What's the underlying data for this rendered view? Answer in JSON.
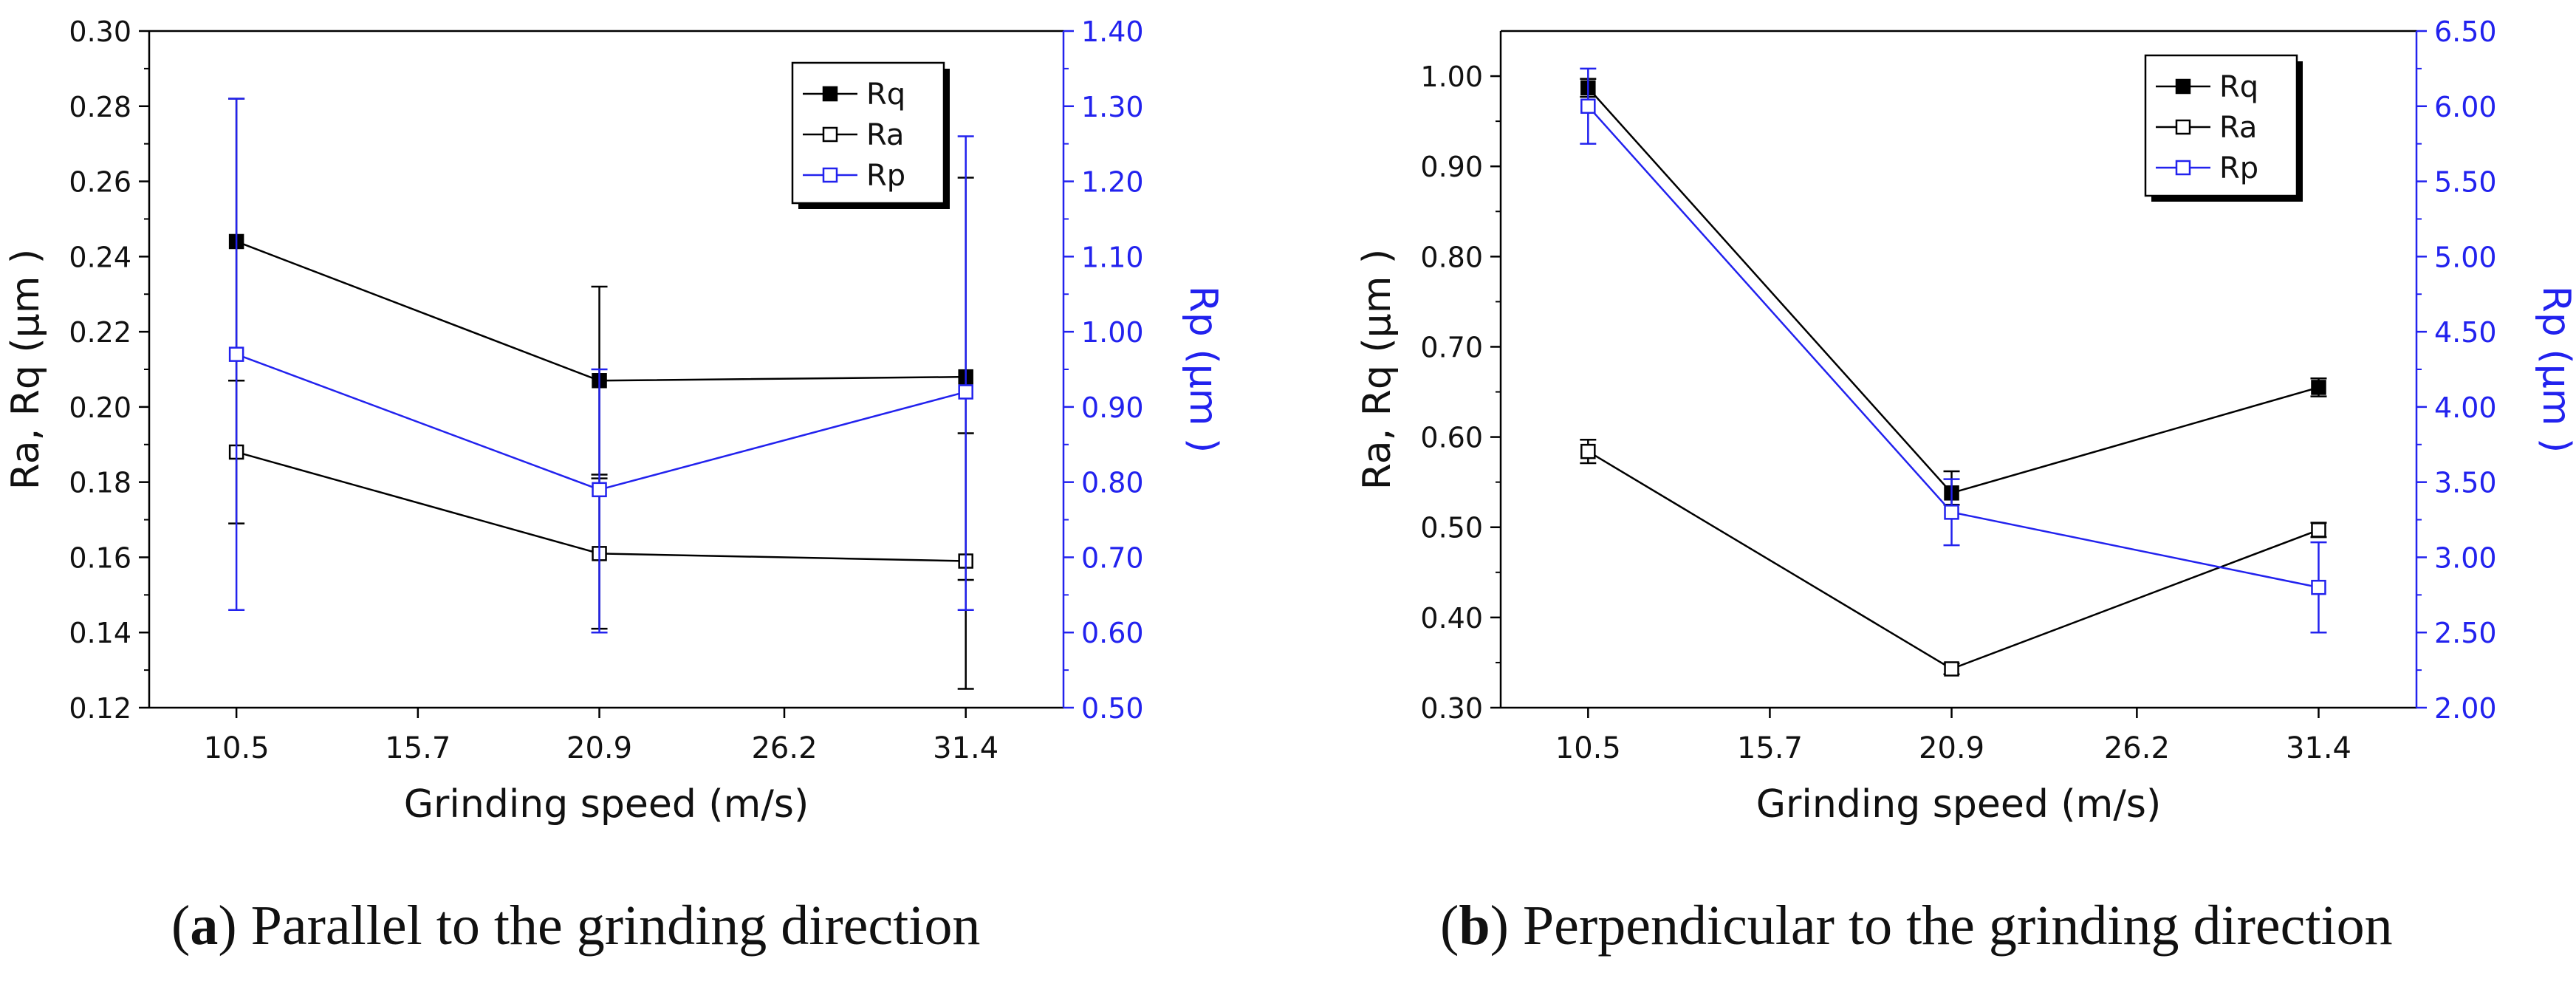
{
  "charts": [
    {
      "panel": "a",
      "caption_letter": "a",
      "caption_text": "Parallel to the grinding direction"
    },
    {
      "panel": "b",
      "caption_letter": "b",
      "caption_text": "Perpendicular to the grinding direction"
    }
  ],
  "chart_data": [
    {
      "type": "line",
      "title": "",
      "xlabel": "Grinding speed (m/s)",
      "ylabel": "Ra, Rq (µm )",
      "y2label": "Rp (µm )",
      "x_ticks": [
        "10.5",
        "15.7",
        "20.9",
        "26.2",
        "31.4"
      ],
      "xlim": [
        8.0,
        34.2
      ],
      "ylim": [
        0.12,
        0.3
      ],
      "y_ticks": [
        "0.12",
        "0.14",
        "0.16",
        "0.18",
        "0.20",
        "0.22",
        "0.24",
        "0.26",
        "0.28",
        "0.30"
      ],
      "y2lim": [
        0.5,
        1.4
      ],
      "y2_ticks": [
        "0.50",
        "0.60",
        "0.70",
        "0.80",
        "0.90",
        "1.00",
        "1.10",
        "1.20",
        "1.30",
        "1.40"
      ],
      "legend_position": "top-right",
      "x": [
        10.5,
        20.9,
        31.4
      ],
      "series": [
        {
          "name": "Rq",
          "axis": "left",
          "marker": "filled-square",
          "color": "#000000",
          "values": [
            0.244,
            0.207,
            0.208
          ],
          "err_low": [
            0.207,
            0.182,
            0.154
          ],
          "err_high": [
            0.282,
            0.232,
            0.261
          ]
        },
        {
          "name": "Ra",
          "axis": "left",
          "marker": "open-square",
          "color": "#000000",
          "values": [
            0.188,
            0.161,
            0.159
          ],
          "err_low": [
            0.169,
            0.141,
            0.125
          ],
          "err_high": [
            0.207,
            0.181,
            0.193
          ]
        },
        {
          "name": "Rp",
          "axis": "right",
          "marker": "open-square",
          "color": "#2222ee",
          "values": [
            0.97,
            0.79,
            0.92
          ],
          "err_low": [
            0.63,
            0.6,
            0.63
          ],
          "err_high": [
            1.31,
            0.95,
            1.26
          ]
        }
      ]
    },
    {
      "type": "line",
      "title": "",
      "xlabel": "Grinding speed (m/s)",
      "ylabel": "Ra, Rq (µm )",
      "y2label": "Rp (µm )",
      "x_ticks": [
        "10.5",
        "15.7",
        "20.9",
        "26.2",
        "31.4"
      ],
      "xlim": [
        8.0,
        34.2
      ],
      "ylim": [
        0.3,
        1.05
      ],
      "y_ticks": [
        "0.30",
        "0.40",
        "0.50",
        "0.60",
        "0.70",
        "0.80",
        "0.90",
        "1.00"
      ],
      "y2lim": [
        2.0,
        6.5
      ],
      "y2_ticks": [
        "2.00",
        "2.50",
        "3.00",
        "3.50",
        "4.00",
        "4.50",
        "5.00",
        "5.50",
        "6.00",
        "6.50"
      ],
      "legend_position": "top-right",
      "x": [
        10.5,
        20.9,
        31.4
      ],
      "series": [
        {
          "name": "Rq",
          "axis": "left",
          "marker": "filled-square",
          "color": "#000000",
          "values": [
            0.987,
            0.538,
            0.655
          ],
          "err_low": [
            0.977,
            0.525,
            0.645
          ],
          "err_high": [
            0.997,
            0.562,
            0.665
          ]
        },
        {
          "name": "Ra",
          "axis": "left",
          "marker": "open-square",
          "color": "#000000",
          "values": [
            0.584,
            0.343,
            0.497
          ],
          "err_low": [
            0.571,
            0.337,
            0.489
          ],
          "err_high": [
            0.597,
            0.349,
            0.505
          ]
        },
        {
          "name": "Rp",
          "axis": "right",
          "marker": "open-square",
          "color": "#2222ee",
          "values": [
            6.0,
            3.3,
            2.8
          ],
          "err_low": [
            5.75,
            3.08,
            2.5
          ],
          "err_high": [
            6.25,
            3.52,
            3.1
          ]
        }
      ]
    }
  ]
}
